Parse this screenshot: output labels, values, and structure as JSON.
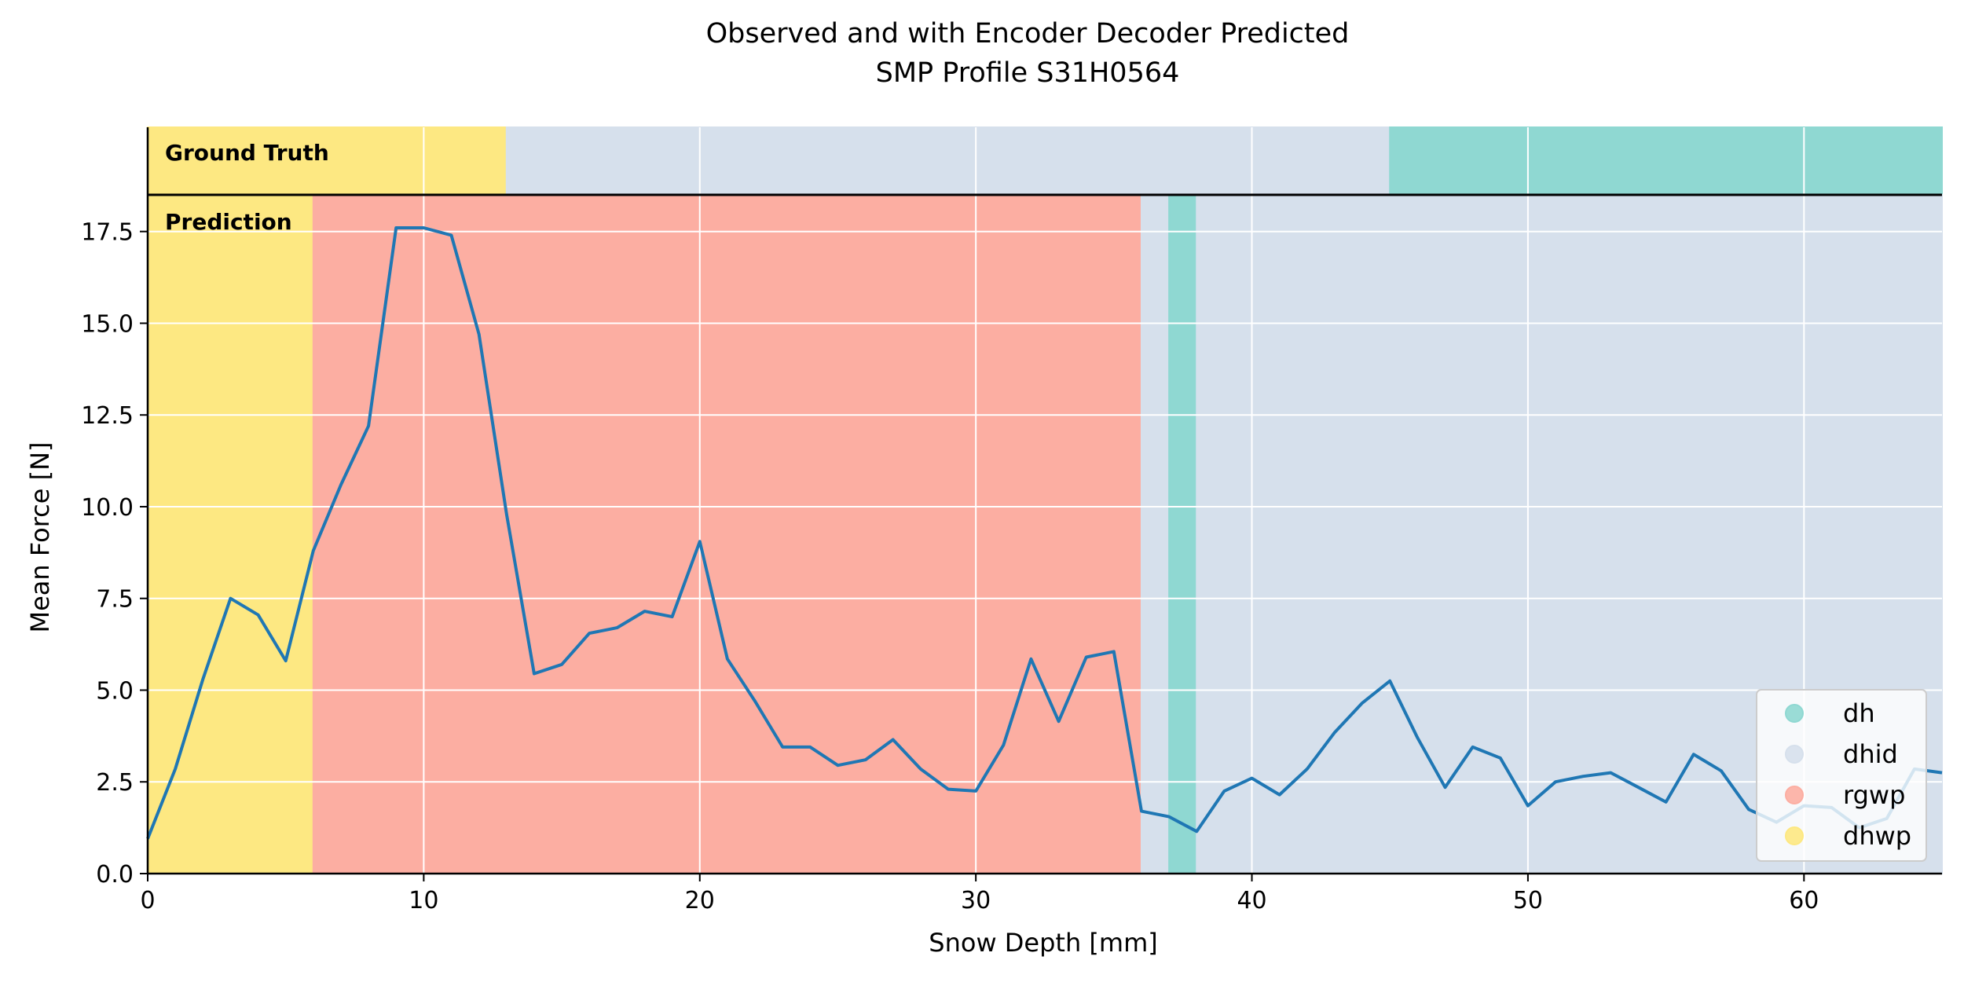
{
  "title_line1": "Observed and with Encoder Decoder Predicted",
  "title_line2": "SMP Profile S31H0564",
  "ground_truth_label": "Ground Truth",
  "prediction_label": "Prediction",
  "colors": {
    "line": "#1f77b4",
    "dh": "#8fd8d2",
    "dhid": "#d6e0ec",
    "rgwp": "#fcaea2",
    "dhwp": "#fde882",
    "grid": "#ffffff"
  },
  "chart_data": {
    "type": "line",
    "title": "Observed and with Encoder Decoder Predicted\nSMP Profile S31H0564",
    "xlabel": "Snow Depth [mm]",
    "ylabel": "Mean Force [N]",
    "xlim": [
      0,
      65
    ],
    "ylim": [
      0,
      18.5
    ],
    "xticks": [
      0,
      10,
      20,
      30,
      40,
      50,
      60
    ],
    "yticks": [
      0.0,
      2.5,
      5.0,
      7.5,
      10.0,
      12.5,
      15.0,
      17.5
    ],
    "xtick_labels": [
      "0",
      "10",
      "20",
      "30",
      "40",
      "50",
      "60"
    ],
    "ytick_labels": [
      "0.0",
      "2.5",
      "5.0",
      "7.5",
      "10.0",
      "12.5",
      "15.0",
      "17.5"
    ],
    "grid": true,
    "legend_position": "bottom-right",
    "legend": [
      {
        "label": "dh",
        "color": "#8fd8d2"
      },
      {
        "label": "dhid",
        "color": "#d6e0ec"
      },
      {
        "label": "rgwp",
        "color": "#fcaea2"
      },
      {
        "label": "dhwp",
        "color": "#fde882"
      }
    ],
    "ground_truth_segments": [
      {
        "class": "dhwp",
        "start": 0,
        "end": 13
      },
      {
        "class": "dhid",
        "start": 13,
        "end": 45
      },
      {
        "class": "dh",
        "start": 45,
        "end": 65
      }
    ],
    "prediction_segments": [
      {
        "class": "dhwp",
        "start": 0,
        "end": 6
      },
      {
        "class": "rgwp",
        "start": 6,
        "end": 36
      },
      {
        "class": "dhid",
        "start": 36,
        "end": 37
      },
      {
        "class": "dh",
        "start": 37,
        "end": 38
      },
      {
        "class": "dhid",
        "start": 38,
        "end": 65
      }
    ],
    "x": [
      0,
      1,
      2,
      3,
      4,
      5,
      6,
      7,
      8,
      9,
      10,
      11,
      12,
      13,
      14,
      15,
      16,
      17,
      18,
      19,
      20,
      21,
      22,
      23,
      24,
      25,
      26,
      27,
      28,
      29,
      30,
      31,
      32,
      33,
      34,
      35,
      36,
      37,
      38,
      39,
      40,
      41,
      42,
      43,
      44,
      45,
      46,
      47,
      48,
      49,
      50,
      51,
      52,
      53,
      54,
      55,
      56,
      57,
      58,
      59,
      60,
      61,
      62,
      63,
      64,
      65
    ],
    "y": [
      0.95,
      2.85,
      5.3,
      7.5,
      7.05,
      5.8,
      8.8,
      10.6,
      12.2,
      17.6,
      17.6,
      17.4,
      14.7,
      9.8,
      5.45,
      5.7,
      6.55,
      6.7,
      7.15,
      7.0,
      9.05,
      5.85,
      4.7,
      3.45,
      3.45,
      2.95,
      3.1,
      3.65,
      2.85,
      2.3,
      2.25,
      3.5,
      5.85,
      4.15,
      5.9,
      6.05,
      1.7,
      1.55,
      1.15,
      2.25,
      2.6,
      2.15,
      2.85,
      3.85,
      4.65,
      5.25,
      3.7,
      2.35,
      3.45,
      3.15,
      1.85,
      2.5,
      2.65,
      2.75,
      2.35,
      1.95,
      3.25,
      2.8,
      1.75,
      1.4,
      1.85,
      1.8,
      1.25,
      1.5,
      2.85,
      2.75
    ]
  }
}
